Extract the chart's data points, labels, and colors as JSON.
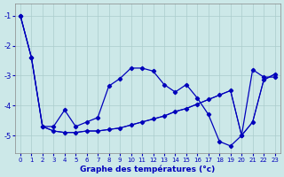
{
  "xlabel": "Graphe des températures (°c)",
  "x_ticks": [
    0,
    1,
    2,
    3,
    4,
    5,
    6,
    7,
    8,
    9,
    10,
    11,
    12,
    13,
    14,
    15,
    16,
    17,
    18,
    19,
    20,
    21,
    22,
    23
  ],
  "xlim": [
    -0.5,
    23.5
  ],
  "ylim": [
    -5.6,
    -0.6
  ],
  "y_ticks": [
    -5,
    -4,
    -3,
    -2,
    -1
  ],
  "bg_color": "#cce8e8",
  "line_color": "#0000bb",
  "grid_color": "#aacccc",
  "series1_x": [
    0,
    1,
    2,
    3,
    4,
    5,
    6,
    7,
    8,
    9,
    10,
    11,
    12,
    13,
    14,
    15,
    16,
    17,
    18,
    19,
    20,
    21,
    22,
    23
  ],
  "series1_y": [
    -1.0,
    -2.4,
    -4.7,
    -4.7,
    -4.15,
    -4.7,
    -4.55,
    -4.4,
    -3.35,
    -3.1,
    -2.75,
    -2.75,
    -2.85,
    -3.3,
    -3.55,
    -3.3,
    -3.75,
    -4.3,
    -5.2,
    -5.35,
    -5.0,
    -2.8,
    -3.05,
    -3.05
  ],
  "series2_x": [
    0,
    1,
    2,
    3,
    4,
    5,
    6,
    7,
    8,
    9,
    10,
    11,
    12,
    13,
    14,
    15,
    16,
    17,
    18,
    19,
    20,
    21,
    22,
    23
  ],
  "series2_y": [
    -1.0,
    -2.4,
    -4.7,
    -4.85,
    -4.9,
    -4.9,
    -4.85,
    -4.85,
    -4.8,
    -4.75,
    -4.65,
    -4.55,
    -4.45,
    -4.35,
    -4.2,
    -4.1,
    -3.95,
    -3.8,
    -3.65,
    -3.5,
    -5.0,
    -4.55,
    -3.15,
    -2.95
  ],
  "series3_x": [
    0,
    1,
    2,
    3,
    4,
    5,
    6,
    7,
    8,
    9,
    10,
    11,
    12,
    13,
    14,
    15,
    16,
    17,
    18,
    19,
    20,
    21,
    22,
    23
  ],
  "series3_y": [
    -1.0,
    -2.4,
    -4.7,
    -4.85,
    -4.9,
    -4.9,
    -4.85,
    -4.85,
    -4.8,
    -4.75,
    -4.65,
    -4.55,
    -4.45,
    -4.35,
    -4.2,
    -4.1,
    -3.95,
    -3.8,
    -3.65,
    -3.5,
    -5.0,
    -4.55,
    -3.15,
    -2.95
  ]
}
